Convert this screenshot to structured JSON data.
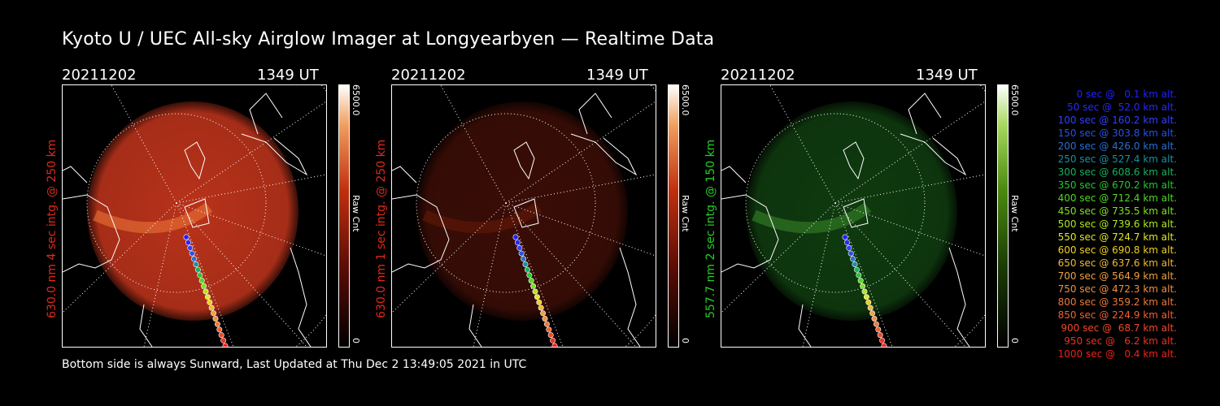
{
  "title": "Kyoto U / UEC All-sky Airglow Imager at Longyearbyen — Realtime Data",
  "footer": "Bottom side is always Sunward, Last Updated at Thu Dec  2 13:49:05 2021 in UTC",
  "panels": [
    {
      "date": "20211202",
      "time": "1349 UT",
      "side_label": "630.0 nm 4 sec intg. @ 250 km",
      "label_color": "#e02a1a",
      "colorbar_top": "6500.0",
      "colorbar_mid": "Raw Cnt",
      "colorbar_bottom": "0",
      "colormap": "red",
      "glow_color": "#b8321a"
    },
    {
      "date": "20211202",
      "time": "1349 UT",
      "side_label": "630.0 nm 1 sec intg. @ 250 km",
      "label_color": "#e02a1a",
      "colorbar_top": "6500.0",
      "colorbar_mid": "Raw Cnt",
      "colorbar_bottom": "0",
      "colormap": "red",
      "glow_color": "#3a0d06"
    },
    {
      "date": "20211202",
      "time": "1349 UT",
      "side_label": "557.7 nm 2 sec intg. @ 150 km",
      "label_color": "#22d022",
      "colorbar_top": "6500.0",
      "colorbar_mid": "Raw Cnt",
      "colorbar_bottom": "0",
      "colormap": "green",
      "glow_color": "#0f3a0f"
    }
  ],
  "legend": [
    {
      "text": "   0 sec @   0.1 km alt.",
      "color": "#2020ff"
    },
    {
      "text": "  50 sec @  52.0 km alt.",
      "color": "#2828ff"
    },
    {
      "text": " 100 sec @ 160.2 km alt.",
      "color": "#3040ff"
    },
    {
      "text": " 150 sec @ 303.8 km alt.",
      "color": "#2850e8"
    },
    {
      "text": " 200 sec @ 426.0 km alt.",
      "color": "#2870d0"
    },
    {
      "text": " 250 sec @ 527.4 km alt.",
      "color": "#1890a0"
    },
    {
      "text": " 300 sec @ 608.6 km alt.",
      "color": "#18b060"
    },
    {
      "text": " 350 sec @ 670.2 km alt.",
      "color": "#20c830"
    },
    {
      "text": " 400 sec @ 712.4 km alt.",
      "color": "#50d820"
    },
    {
      "text": " 450 sec @ 735.5 km alt.",
      "color": "#80e020"
    },
    {
      "text": " 500 sec @ 739.6 km alt.",
      "color": "#b0e820"
    },
    {
      "text": " 550 sec @ 724.7 km alt.",
      "color": "#e0e820"
    },
    {
      "text": " 600 sec @ 690.8 km alt.",
      "color": "#f0d020"
    },
    {
      "text": " 650 sec @ 637.6 km alt.",
      "color": "#f0b830"
    },
    {
      "text": " 700 sec @ 564.9 km alt.",
      "color": "#f0a040"
    },
    {
      "text": " 750 sec @ 472.3 km alt.",
      "color": "#f09040"
    },
    {
      "text": " 800 sec @ 359.2 km alt.",
      "color": "#f07838"
    },
    {
      "text": " 850 sec @ 224.9 km alt.",
      "color": "#f06030"
    },
    {
      "text": " 900 sec @  68.7 km alt.",
      "color": "#f04828"
    },
    {
      "text": " 950 sec @   6.2 km alt.",
      "color": "#f03020"
    },
    {
      "text": "1000 sec @   0.4 km alt.",
      "color": "#f02018"
    }
  ]
}
